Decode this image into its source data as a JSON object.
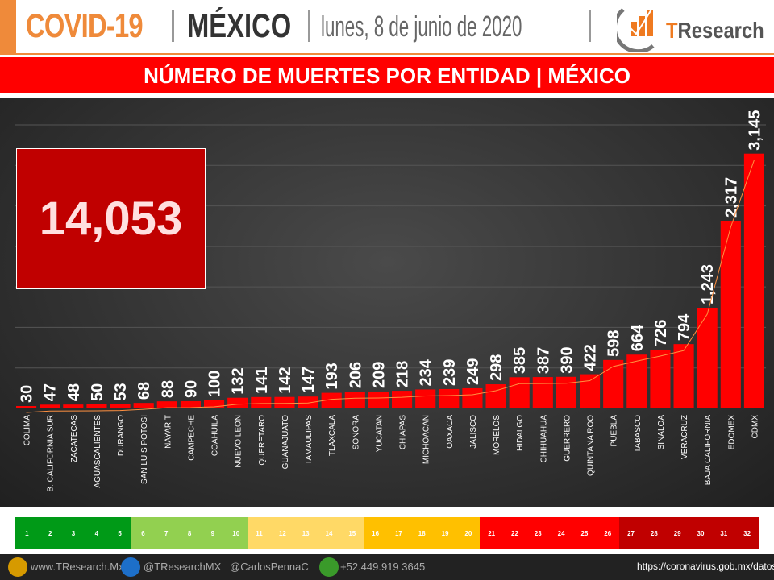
{
  "header": {
    "title_covid": "COVID-19",
    "title_country": "MÉXICO",
    "date": "lunes, 8 de junio de 2020",
    "logo_text": "TResearch"
  },
  "banner": "NÚMERO DE MUERTES POR ENTIDAD | MÉXICO",
  "total": "14,053",
  "chart_data": {
    "type": "bar",
    "title": "NÚMERO DE MUERTES POR ENTIDAD | MÉXICO",
    "categories": [
      "COLIMA",
      "B. CALIFORNIA SUR",
      "ZACATECAS",
      "AGUASCALIENTES",
      "DURANGO",
      "SAN LUIS POTOSI",
      "NAYARIT",
      "CAMPECHE",
      "COAHUILA",
      "NUEVO LEON",
      "QUERETARO",
      "GUANAJUATO",
      "TAMAULIPAS",
      "TLAXCALA",
      "SONORA",
      "YUCATAN",
      "CHIAPAS",
      "MICHOACAN",
      "OAXACA",
      "JALISCO",
      "MORELOS",
      "HIDALGO",
      "CHIHUAHUA",
      "GUERRERO",
      "QUINTANA ROO",
      "PUEBLA",
      "TABASCO",
      "SINALOA",
      "VERACRUZ",
      "BAJA CALIFORNIA",
      "EDOMEX",
      "CDMX"
    ],
    "values": [
      30,
      47,
      48,
      50,
      53,
      68,
      88,
      90,
      100,
      132,
      141,
      142,
      147,
      193,
      206,
      209,
      218,
      234,
      239,
      249,
      298,
      385,
      387,
      390,
      422,
      598,
      664,
      726,
      794,
      1243,
      2317,
      3145
    ],
    "value_labels": [
      "30",
      "47",
      "48",
      "50",
      "53",
      "68",
      "88",
      "90",
      "100",
      "132",
      "141",
      "142",
      "147",
      "193",
      "206",
      "209",
      "218",
      "234",
      "239",
      "249",
      "298",
      "385",
      "387",
      "390",
      "422",
      "598",
      "664",
      "726",
      "794",
      "1,243",
      "2,317",
      "3,145"
    ],
    "ylim": [
      0,
      3500
    ],
    "grid": true,
    "bar_color": "#ff0000",
    "trend_color": "#ff9040"
  },
  "legend": {
    "ranks": [
      "1",
      "2",
      "3",
      "4",
      "5",
      "6",
      "7",
      "8",
      "9",
      "10",
      "11",
      "12",
      "13",
      "14",
      "15",
      "16",
      "17",
      "18",
      "19",
      "20",
      "21",
      "22",
      "23",
      "24",
      "25",
      "26",
      "27",
      "28",
      "29",
      "30",
      "31",
      "32"
    ],
    "colors": [
      "#009a17",
      "#009a17",
      "#009a17",
      "#009a17",
      "#009a17",
      "#92d050",
      "#92d050",
      "#92d050",
      "#92d050",
      "#92d050",
      "#ffd966",
      "#ffd966",
      "#ffd966",
      "#ffd966",
      "#ffd966",
      "#ffc000",
      "#ffc000",
      "#ffc000",
      "#ffc000",
      "#ffc000",
      "#ff0000",
      "#ff0000",
      "#ff0000",
      "#ff0000",
      "#ff0000",
      "#ff0000",
      "#c00000",
      "#c00000",
      "#c00000",
      "#c00000",
      "#c00000",
      "#c00000"
    ]
  },
  "footer": {
    "website": "www.TResearch.Mx",
    "twitter": "@TResearchMX",
    "twitter2": "@CarlosPennaC",
    "phone": "+52.449.919 3645",
    "source": "https://coronavirus.gob.mx/datos/"
  }
}
